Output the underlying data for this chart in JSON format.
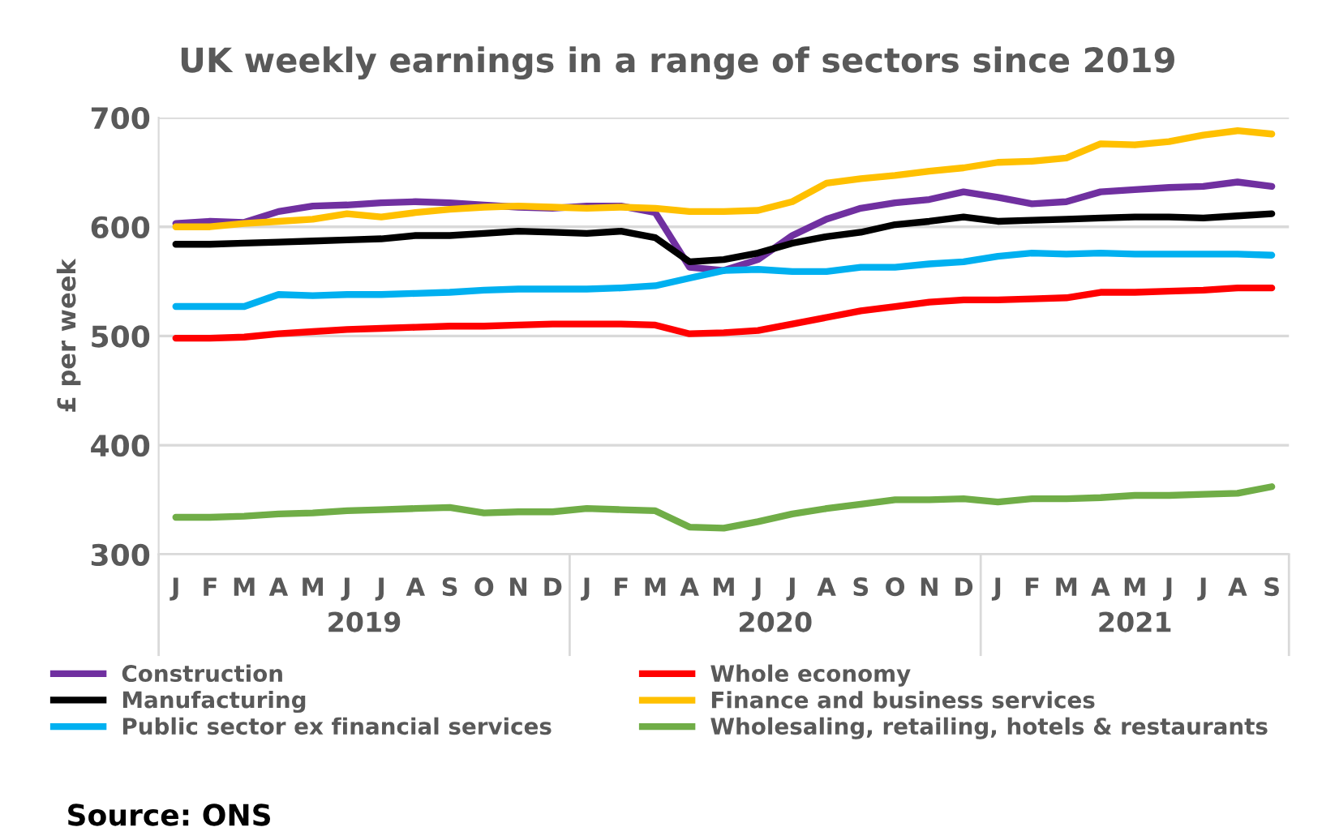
{
  "chart_data": {
    "type": "line",
    "title": "UK weekly earnings in a range of sectors since 2019",
    "ylabel": "£ per week",
    "categories": [
      "J",
      "F",
      "M",
      "A",
      "M",
      "J",
      "J",
      "A",
      "S",
      "O",
      "N",
      "D",
      "J",
      "F",
      "M",
      "A",
      "M",
      "J",
      "J",
      "A",
      "S",
      "O",
      "N",
      "D",
      "J",
      "F",
      "M",
      "A",
      "M",
      "J",
      "J",
      "A",
      "S"
    ],
    "series": [
      {
        "name": "Construction",
        "color": "#7030a0",
        "values": [
          603,
          605,
          604,
          614,
          619,
          620,
          622,
          623,
          622,
          620,
          618,
          617,
          619,
          619,
          613,
          563,
          560,
          570,
          592,
          607,
          617,
          622,
          625,
          632,
          627,
          621,
          623,
          632,
          634,
          636,
          637,
          641,
          637
        ]
      },
      {
        "name": "Manufacturing",
        "color": "#000000",
        "values": [
          584,
          584,
          585,
          586,
          587,
          588,
          589,
          592,
          592,
          594,
          596,
          595,
          594,
          596,
          590,
          568,
          570,
          576,
          585,
          591,
          595,
          602,
          605,
          609,
          605,
          606,
          607,
          608,
          609,
          609,
          608,
          610,
          612
        ]
      },
      {
        "name": "Public sector ex financial services",
        "color": "#00b0f0",
        "values": [
          527,
          527,
          527,
          538,
          537,
          538,
          538,
          539,
          540,
          542,
          543,
          543,
          543,
          544,
          546,
          553,
          560,
          561,
          559,
          559,
          563,
          563,
          566,
          568,
          573,
          576,
          575,
          576,
          575,
          575,
          575,
          575,
          574
        ]
      },
      {
        "name": "Whole economy",
        "color": "#ff0000",
        "values": [
          498,
          498,
          499,
          502,
          504,
          506,
          507,
          508,
          509,
          509,
          510,
          511,
          511,
          511,
          510,
          502,
          503,
          505,
          511,
          517,
          523,
          527,
          531,
          533,
          533,
          534,
          535,
          540,
          540,
          541,
          542,
          544,
          544
        ]
      },
      {
        "name": "Finance and business services",
        "color": "#ffc000",
        "values": [
          600,
          600,
          603,
          605,
          607,
          612,
          609,
          613,
          616,
          618,
          619,
          618,
          617,
          618,
          617,
          614,
          614,
          615,
          623,
          640,
          644,
          647,
          651,
          654,
          659,
          660,
          663,
          676,
          675,
          678,
          684,
          688,
          685
        ]
      },
      {
        "name": "Wholesaling, retailing, hotels & restaurants",
        "color": "#70ad47",
        "values": [
          334,
          334,
          335,
          337,
          338,
          340,
          341,
          342,
          343,
          338,
          339,
          339,
          342,
          341,
          340,
          325,
          324,
          330,
          337,
          342,
          346,
          350,
          350,
          351,
          348,
          351,
          351,
          352,
          354,
          354,
          355,
          356,
          362
        ]
      }
    ],
    "ylim": [
      300,
      700
    ],
    "yticks": [
      300,
      400,
      500,
      600,
      700
    ],
    "grid": "y",
    "legend": "bottom",
    "marker": "none",
    "line_style": "solid",
    "annotations": [
      "2019",
      "2020",
      "2021",
      "Source: ONS"
    ]
  }
}
